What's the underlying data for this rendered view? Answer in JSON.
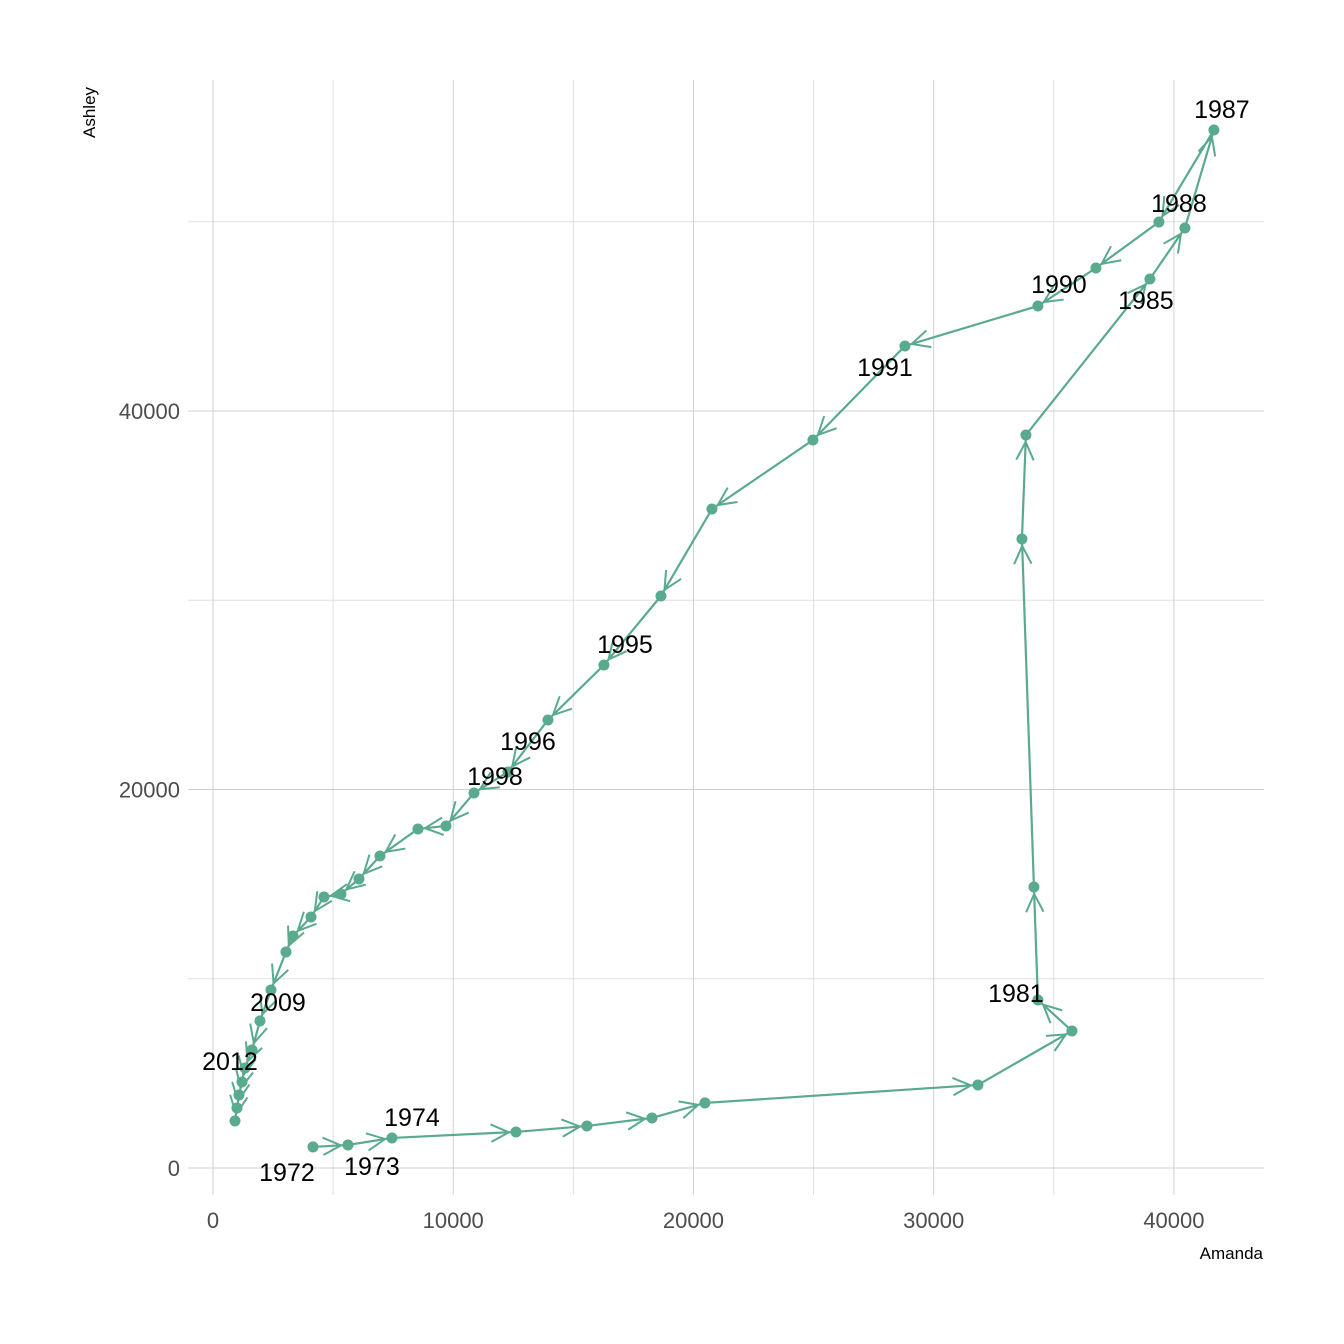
{
  "chart_data": {
    "type": "connected-scatter",
    "x_label": "Amanda",
    "y_label": "Ashley",
    "color": "#5aaa8e",
    "x": [
      4162,
      5619,
      7451,
      12612,
      15567,
      18273,
      20479,
      31842,
      35755,
      34339,
      34173,
      33674,
      33840,
      39001,
      40458,
      41665,
      39376,
      36754,
      34339,
      28803,
      24974,
      20770,
      18647,
      16275,
      13944,
      12279,
      10864,
      9698,
      8533,
      6951,
      6077,
      5328,
      4620,
      4079,
      3330,
      3039,
      2414,
      1956,
      1623,
      1332,
      1207,
      1082,
      999,
      916
    ],
    "values": [
      1110,
      1215,
      1585,
      1902,
      2219,
      2642,
      3435,
      4386,
      7239,
      8877,
      14848,
      33237,
      38732,
      46975,
      49670,
      54848,
      49987,
      47556,
      45548,
      43435,
      38468,
      34822,
      30225,
      26579,
      23673,
      20925,
      19815,
      18071,
      17913,
      16486,
      15271,
      14478,
      14320,
      13263,
      12259,
      11414,
      9406,
      7768,
      6235,
      5284,
      4544,
      3857,
      3170,
      2484
    ],
    "labels": [
      "1972",
      "1973",
      "1974",
      null,
      null,
      null,
      null,
      null,
      null,
      "1981",
      null,
      null,
      null,
      "1985",
      null,
      "1987",
      "1988",
      null,
      "1990",
      "1991",
      null,
      null,
      null,
      "1995",
      "1996",
      null,
      "1998",
      null,
      null,
      null,
      null,
      null,
      null,
      null,
      null,
      null,
      null,
      "2009",
      null,
      null,
      "2012",
      null,
      null,
      null
    ],
    "xlim": [
      -1040,
      43750
    ],
    "ylim": [
      -1430,
      57490
    ],
    "xticks": [
      0,
      10000,
      20000,
      30000,
      40000
    ],
    "yticks": [
      0,
      20000,
      40000
    ],
    "xminor": [
      5000,
      15000,
      25000,
      35000
    ],
    "yminor": [
      10000,
      30000,
      50000
    ],
    "grid": true
  }
}
